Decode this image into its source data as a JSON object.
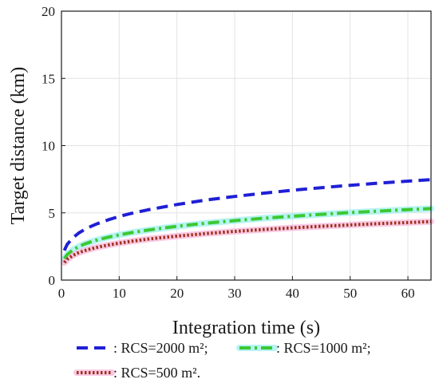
{
  "chart_data": {
    "type": "line",
    "title": "",
    "xlabel": "Integration time (s)",
    "ylabel": "Target distance (km)",
    "xlim": [
      0,
      64
    ],
    "ylim": [
      0,
      20
    ],
    "xticks": [
      0,
      10,
      20,
      30,
      40,
      50,
      60
    ],
    "yticks": [
      0,
      5,
      10,
      15,
      20
    ],
    "xtick_labels": [
      "0",
      "10",
      "20",
      "30",
      "40",
      "50",
      "60"
    ],
    "ytick_labels": [
      "0",
      "5",
      "10",
      "15",
      "20"
    ],
    "grid": true,
    "legend_position": "bottom",
    "x": [
      0.5,
      1,
      2,
      3,
      4,
      5,
      6,
      8,
      10,
      12,
      15,
      20,
      25,
      30,
      35,
      40,
      45,
      50,
      55,
      60,
      64
    ],
    "series": [
      {
        "name": ": RCS=2000 m²;",
        "color": "#1f1fd6",
        "dash": "dashed",
        "values": [
          2.2,
          2.66,
          3.16,
          3.5,
          3.76,
          3.97,
          4.16,
          4.47,
          4.73,
          4.95,
          5.23,
          5.62,
          5.95,
          6.22,
          6.46,
          6.68,
          6.87,
          7.05,
          7.21,
          7.36,
          7.47
        ]
      },
      {
        "name": ": RCS=1000 m²;",
        "color": "#3cc832",
        "halo": "#9ef0ee",
        "dash": "dash-dot",
        "values": [
          1.6,
          1.9,
          2.25,
          2.5,
          2.68,
          2.83,
          2.96,
          3.18,
          3.36,
          3.52,
          3.72,
          4.0,
          4.23,
          4.42,
          4.6,
          4.75,
          4.89,
          5.02,
          5.13,
          5.24,
          5.32
        ]
      },
      {
        "name": ": RCS=500 m².",
        "color": "#a0321e",
        "halo": "#f7b8dc",
        "dash": "dotted",
        "values": [
          1.3,
          1.55,
          1.84,
          2.04,
          2.19,
          2.31,
          2.42,
          2.6,
          2.75,
          2.88,
          3.05,
          3.27,
          3.46,
          3.62,
          3.76,
          3.89,
          4.0,
          4.1,
          4.2,
          4.28,
          4.35
        ]
      }
    ]
  }
}
